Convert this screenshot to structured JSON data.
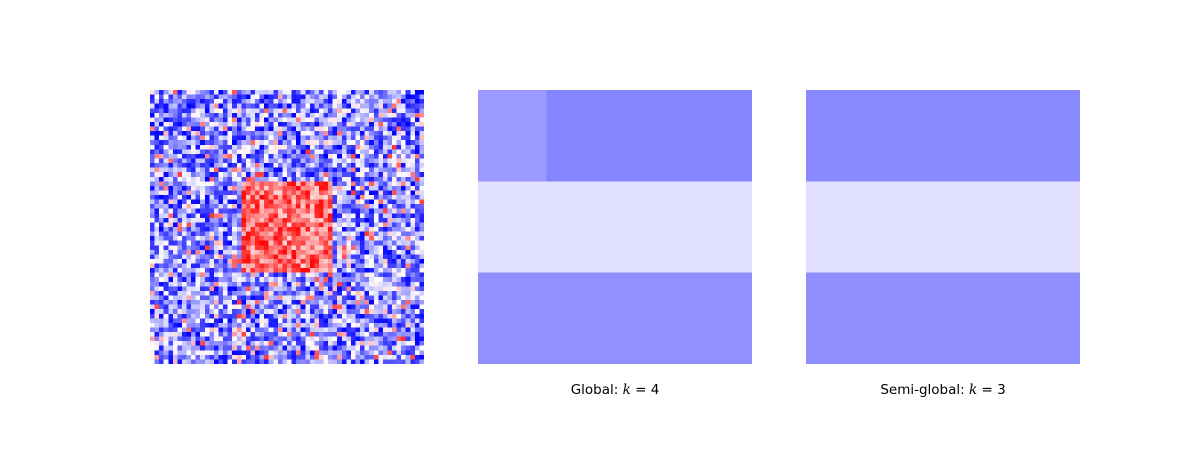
{
  "chart_data": [
    {
      "type": "heatmap",
      "grid": [
        60,
        60
      ],
      "colormap": "bwr",
      "description_of_values": "noisy blue background with a red square block in the center",
      "block_rows": [
        20,
        39
      ],
      "block_cols": [
        20,
        39
      ],
      "title": "",
      "caption": ""
    },
    {
      "type": "heatmap",
      "grid": [
        3,
        3
      ],
      "colormap": "bwr",
      "title": "",
      "caption": {
        "prefix": "Global: ",
        "variable": "k",
        "equals": " = ",
        "value": "4"
      },
      "cells": [
        [
          "#9999ff",
          "#8585ff",
          "#8585ff"
        ],
        [
          "#e1e1ff",
          "#e1e1ff",
          "#e1e1ff"
        ],
        [
          "#9090ff",
          "#9090ff",
          "#9090ff"
        ]
      ],
      "col_split_row0": 0.25
    },
    {
      "type": "heatmap",
      "grid": [
        3,
        1
      ],
      "colormap": "bwr",
      "title": "",
      "caption": {
        "prefix": "Semi-global: ",
        "variable": "k",
        "equals": " = ",
        "value": "3"
      },
      "cells": [
        [
          "#8989ff"
        ],
        [
          "#e1e1ff"
        ],
        [
          "#8e8eff"
        ]
      ]
    }
  ]
}
